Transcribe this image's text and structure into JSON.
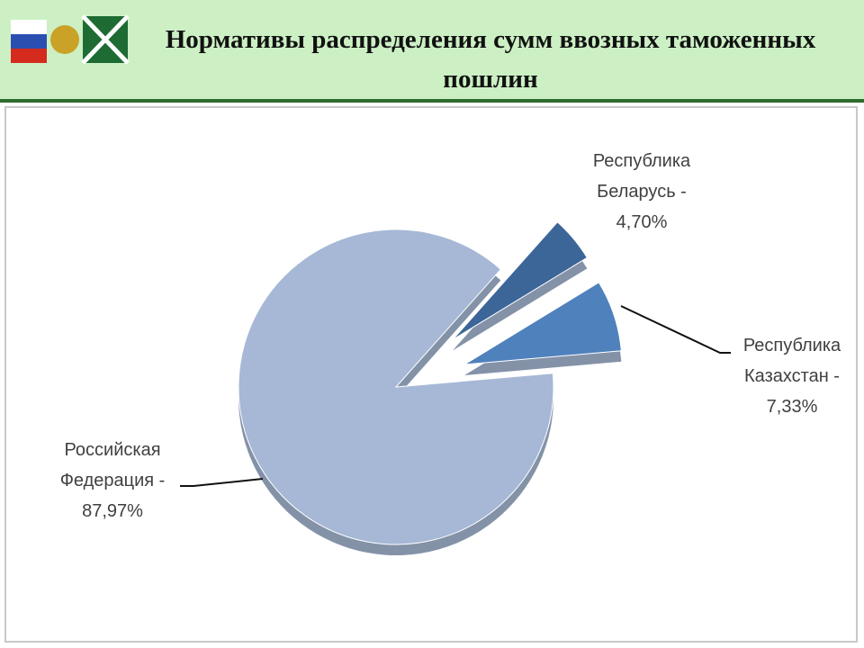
{
  "title": "Нормативы распределения сумм ввозных таможенных пошлин",
  "chart_data": {
    "type": "pie",
    "categories": [
      "Республика Казахстан -",
      "Республика Беларусь -",
      "Российская Федерация -"
    ],
    "values": [
      7.33,
      4.7,
      87.97
    ],
    "value_labels": [
      "7,33%",
      "4,70%",
      "87,97%"
    ],
    "colors": [
      "#4f81bd",
      "#3c6598",
      "#a6b8d6"
    ]
  }
}
